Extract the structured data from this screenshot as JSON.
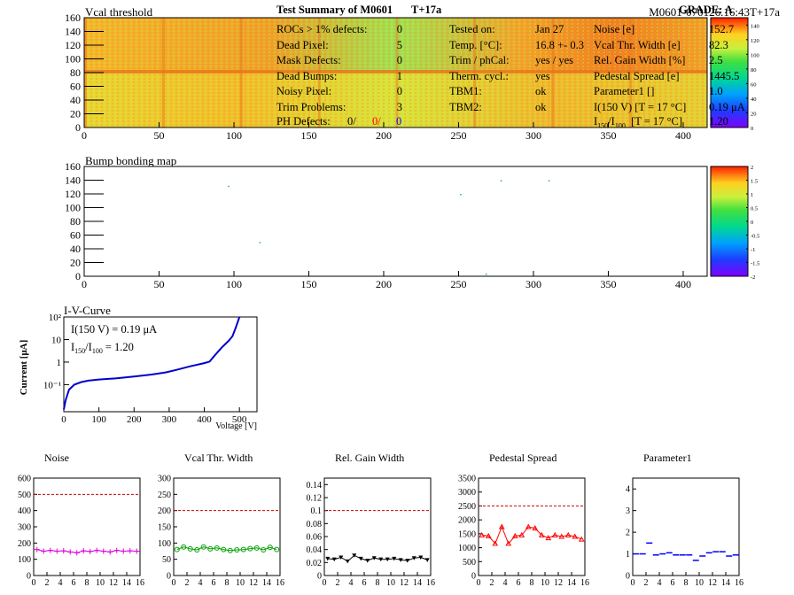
{
  "vcal_map": {
    "title": "Vcal threshold",
    "id_label": "M0601-070126.16:43T+17a",
    "x_ticks": [
      "0",
      "50",
      "100",
      "150",
      "200",
      "250",
      "300",
      "350",
      "400"
    ],
    "y_ticks": [
      "0",
      "20",
      "40",
      "60",
      "80",
      "100",
      "120",
      "140",
      "160"
    ],
    "colorbar_ticks": [
      "0",
      "20",
      "40",
      "60",
      "80",
      "100",
      "120",
      "140"
    ],
    "xlim": [
      0,
      416
    ],
    "ylim": [
      0,
      160
    ]
  },
  "bump_map": {
    "title": "Bump bonding map",
    "x_ticks": [
      "0",
      "50",
      "100",
      "150",
      "200",
      "250",
      "300",
      "350",
      "400"
    ],
    "y_ticks": [
      "0",
      "20",
      "40",
      "60",
      "80",
      "100",
      "120",
      "140",
      "160"
    ],
    "colorbar_ticks": [
      "-2",
      "-1.5",
      "-1",
      "-0.5",
      "0",
      "0.5",
      "1",
      "1.5",
      "2"
    ],
    "points": [
      [
        96,
        132
      ],
      [
        117,
        50
      ],
      [
        251,
        120
      ],
      [
        278,
        140
      ],
      [
        310,
        140
      ],
      [
        268,
        4
      ]
    ]
  },
  "iv": {
    "title": "I-V-Curve",
    "ylabel": "Current [μA]",
    "xlabel": "Voltage [V]",
    "x_ticks": [
      "0",
      "100",
      "200",
      "300",
      "400",
      "500"
    ],
    "y_ticks": [
      "10⁻¹",
      "1",
      "10",
      "10²"
    ],
    "annotation1": "I(150 V) = 0.19 μA",
    "annotation2_prefix": "I",
    "annotation2_sub1": "150",
    "annotation2_mid": "/I",
    "annotation2_sub2": "100",
    "annotation2_value": "=  1.20",
    "curve": [
      [
        0,
        0.008
      ],
      [
        5,
        0.02
      ],
      [
        15,
        0.06
      ],
      [
        30,
        0.1
      ],
      [
        50,
        0.13
      ],
      [
        70,
        0.15
      ],
      [
        100,
        0.17
      ],
      [
        150,
        0.19
      ],
      [
        200,
        0.23
      ],
      [
        250,
        0.28
      ],
      [
        290,
        0.35
      ],
      [
        320,
        0.45
      ],
      [
        360,
        0.65
      ],
      [
        400,
        0.9
      ],
      [
        415,
        1.05
      ],
      [
        430,
        2.0
      ],
      [
        450,
        4.5
      ],
      [
        470,
        9
      ],
      [
        480,
        14
      ],
      [
        490,
        35
      ],
      [
        500,
        100
      ]
    ]
  },
  "summary": {
    "title": "Test Summary of M0601",
    "tag": "T+17a",
    "grade_label": "GRADE:  A",
    "left": [
      {
        "label": "ROCs > 1% defects:",
        "value": "0"
      },
      {
        "label": "Dead Pixel:",
        "value": "5"
      },
      {
        "label": "Mask Defects:",
        "value": "0"
      },
      {
        "label": "Dead Bumps:",
        "value": "1"
      },
      {
        "label": "Noisy Pixel:",
        "value": "0"
      },
      {
        "label": "Trim Problems:",
        "value": "3"
      }
    ],
    "ph_label": "PH Defects:",
    "ph_values": [
      "0/",
      "0/",
      "0"
    ],
    "ph_colors": [
      "#000000",
      "#ff0000",
      "#0000ff"
    ],
    "middle": [
      {
        "label": "Tested on:",
        "value": "Jan 27"
      },
      {
        "label": "Temp. [°C]:",
        "value": "16.8 +- 0.3"
      },
      {
        "label": "Trim / phCal:",
        "value": "yes / yes"
      },
      {
        "label": "Therm. cycl.:",
        "value": "yes"
      },
      {
        "label": "TBM1:",
        "value": "ok"
      },
      {
        "label": "TBM2:",
        "value": "ok"
      }
    ],
    "right": [
      {
        "label": "Noise [e]",
        "value": "152.7"
      },
      {
        "label": "Vcal Thr. Width [e]",
        "value": "82.3"
      },
      {
        "label": "Rel. Gain Width [%]",
        "value": "2.5"
      },
      {
        "label": "Pedestal Spread [e]",
        "value": "1445.5"
      },
      {
        "label": "Parameter1 []",
        "value": "1.0"
      },
      {
        "label": "I(150 V)  [T = 17 °C]",
        "value": "0.19 μA"
      }
    ],
    "ratio_label_suffix": "[T = 17 °C]",
    "ratio_value": "1.20"
  },
  "chart_data": [
    {
      "type": "scatter",
      "title": "Noise",
      "x": [
        0,
        1,
        2,
        3,
        4,
        5,
        6,
        7,
        8,
        9,
        10,
        11,
        12,
        13,
        14,
        15
      ],
      "values": [
        160,
        150,
        155,
        150,
        152,
        145,
        140,
        152,
        148,
        155,
        150,
        145,
        155,
        150,
        152,
        150
      ],
      "ylim": [
        0,
        600
      ],
      "y_ticks": [
        "0",
        "100",
        "200",
        "300",
        "400",
        "500",
        "600"
      ],
      "x_ticks": [
        "0",
        "2",
        "4",
        "6",
        "8",
        "10",
        "12",
        "14",
        "16"
      ],
      "threshold": 500,
      "color": "#dd00dd",
      "marker": "plus"
    },
    {
      "type": "line",
      "title": "Vcal Thr. Width",
      "x": [
        0,
        1,
        2,
        3,
        4,
        5,
        6,
        7,
        8,
        9,
        10,
        11,
        12,
        13,
        14,
        15
      ],
      "values": [
        80,
        88,
        82,
        79,
        88,
        82,
        85,
        80,
        77,
        79,
        80,
        83,
        85,
        79,
        87,
        80
      ],
      "ylim": [
        0,
        300
      ],
      "y_ticks": [
        "0",
        "50",
        "100",
        "150",
        "200",
        "250",
        "300"
      ],
      "x_ticks": [
        "0",
        "2",
        "4",
        "6",
        "8",
        "10",
        "12",
        "14",
        "16"
      ],
      "threshold": 200,
      "color": "#00a000",
      "marker": "circle"
    },
    {
      "type": "line",
      "title": "Rel. Gain Width",
      "x": [
        0,
        1,
        2,
        3,
        4,
        5,
        6,
        7,
        8,
        9,
        10,
        11,
        12,
        13,
        14,
        15
      ],
      "values": [
        0.026,
        0.025,
        0.028,
        0.022,
        0.031,
        0.026,
        0.023,
        0.027,
        0.025,
        0.025,
        0.026,
        0.024,
        0.023,
        0.027,
        0.028,
        0.024
      ],
      "ylim": [
        0,
        0.15
      ],
      "y_ticks": [
        "0",
        "0.02",
        "0.04",
        "0.06",
        "0.08",
        "0.1",
        "0.12",
        "0.14"
      ],
      "x_ticks": [
        "0",
        "2",
        "4",
        "6",
        "8",
        "10",
        "12",
        "14",
        "16"
      ],
      "threshold": 0.1,
      "color": "#000000",
      "marker": "triangle-down"
    },
    {
      "type": "line",
      "title": "Pedestal Spread",
      "x": [
        0,
        1,
        2,
        3,
        4,
        5,
        6,
        7,
        8,
        9,
        10,
        11,
        12,
        13,
        14,
        15
      ],
      "values": [
        1450,
        1420,
        1150,
        1750,
        1150,
        1420,
        1450,
        1750,
        1700,
        1450,
        1350,
        1450,
        1400,
        1450,
        1400,
        1300
      ],
      "ylim": [
        0,
        3500
      ],
      "y_ticks": [
        "0",
        "500",
        "1000",
        "1500",
        "2000",
        "2500",
        "3000",
        "3500"
      ],
      "x_ticks": [
        "0",
        "2",
        "4",
        "6",
        "8",
        "10",
        "12",
        "14",
        "16"
      ],
      "threshold": 2500,
      "color": "#ff0000",
      "marker": "triangle-up"
    },
    {
      "type": "scatter",
      "title": "Parameter1",
      "x": [
        0,
        1,
        2,
        3,
        4,
        5,
        6,
        7,
        8,
        9,
        10,
        11,
        12,
        13,
        14,
        15
      ],
      "values": [
        1.0,
        1.0,
        1.5,
        0.95,
        1.0,
        1.05,
        0.95,
        0.95,
        0.95,
        0.7,
        0.9,
        1.05,
        1.1,
        1.1,
        0.9,
        0.95
      ],
      "ylim": [
        0,
        4.5
      ],
      "y_ticks": [
        "0",
        "1",
        "2",
        "3",
        "4"
      ],
      "x_ticks": [
        "0",
        "2",
        "4",
        "6",
        "8",
        "10",
        "12",
        "14",
        "16"
      ],
      "threshold": null,
      "color": "#0000ff",
      "marker": "dash"
    }
  ]
}
